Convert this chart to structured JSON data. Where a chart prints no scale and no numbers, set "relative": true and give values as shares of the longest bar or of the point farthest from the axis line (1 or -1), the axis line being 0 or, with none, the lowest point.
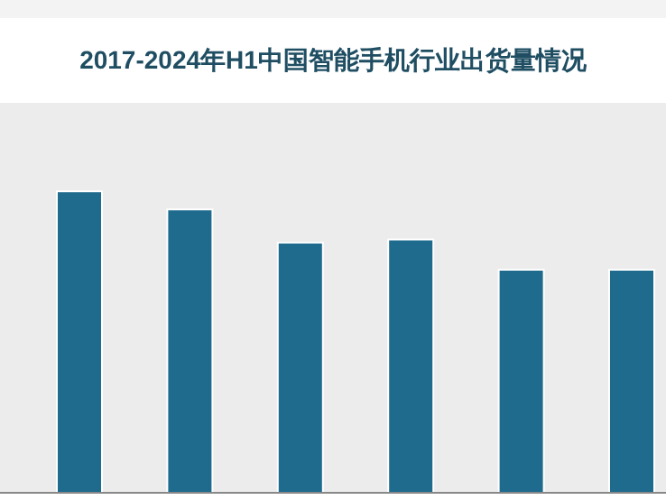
{
  "chart_data": {
    "type": "bar",
    "title": "2017-2024年H1中国智能手机行业出货量情况",
    "relative": true,
    "categories": [
      null,
      null,
      null,
      null,
      null,
      null
    ],
    "values": [
      1,
      0.94,
      0.83,
      0.84,
      0.74,
      0.74
    ],
    "color": "#1f6b8e"
  }
}
